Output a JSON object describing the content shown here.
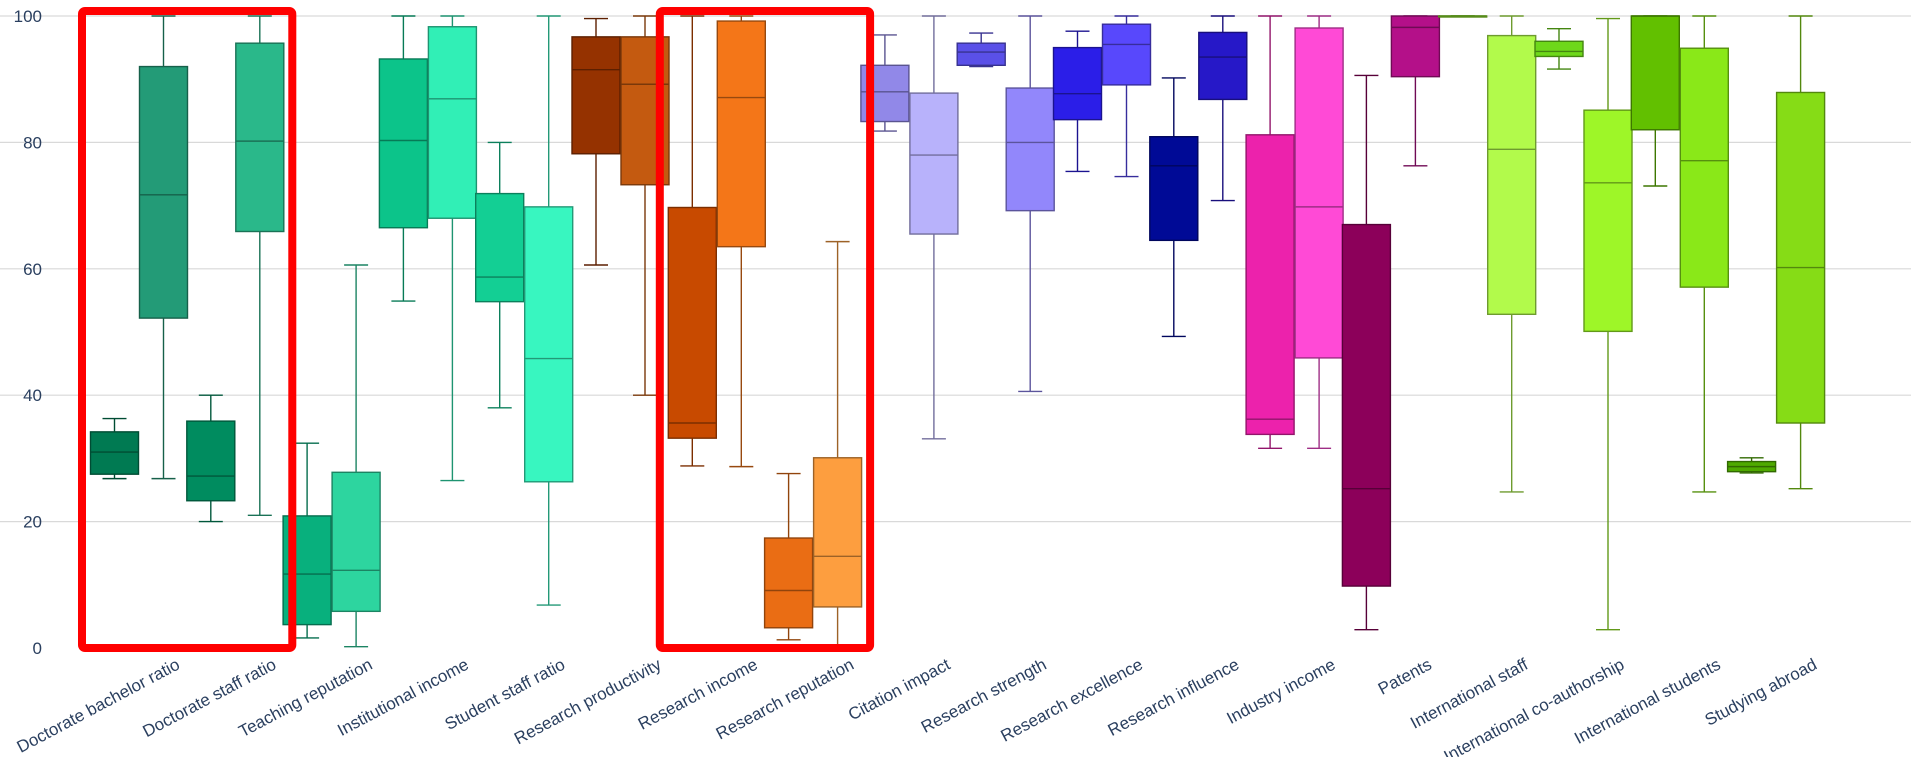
{
  "chart_data": {
    "type": "box",
    "ylim": [
      0,
      100
    ],
    "yticks": [
      0,
      20,
      40,
      60,
      80,
      100
    ],
    "grid": true,
    "categories": [
      "Doctorate bachelor ratio",
      "Doctorate staff ratio",
      "Teaching reputation",
      "Institutional income",
      "Student staff ratio",
      "Research productivity",
      "Research income",
      "Research reputation",
      "Citation impact",
      "Research strength",
      "Research excellence",
      "Research influence",
      "Industry income",
      "Patents",
      "International staff",
      "International co-authorship",
      "International students",
      "Studying abroad"
    ],
    "boxes": [
      {
        "category": "Doctorate bachelor ratio",
        "slot": 0,
        "color": "#007a52",
        "min": 26.8,
        "q1": 27.5,
        "median": 31,
        "q3": 34.2,
        "max": 36.3
      },
      {
        "category": "Doctorate bachelor ratio",
        "slot": 1,
        "color": "#239b77",
        "min": 26.8,
        "q1": 52.2,
        "median": 71.7,
        "q3": 92,
        "max": 100
      },
      {
        "category": "Doctorate staff ratio",
        "slot": 0,
        "color": "#008c5f",
        "min": 20,
        "q1": 23.3,
        "median": 27.2,
        "q3": 35.9,
        "max": 40
      },
      {
        "category": "Doctorate staff ratio",
        "slot": 1,
        "color": "#2ab88a",
        "min": 21,
        "q1": 65.9,
        "median": 80.2,
        "q3": 95.7,
        "max": 100
      },
      {
        "category": "Teaching reputation",
        "slot": 0,
        "color": "#08b07d",
        "min": 1.6,
        "q1": 3.7,
        "median": 11.7,
        "q3": 20.9,
        "max": 32.4
      },
      {
        "category": "Teaching reputation",
        "slot": 1,
        "color": "#2dd59f",
        "min": 0.2,
        "q1": 5.8,
        "median": 12.3,
        "q3": 27.8,
        "max": 60.6
      },
      {
        "category": "Institutional income",
        "slot": 0,
        "color": "#0cc48a",
        "min": 54.9,
        "q1": 66.5,
        "median": 80.3,
        "q3": 93.2,
        "max": 100
      },
      {
        "category": "Institutional income",
        "slot": 1,
        "color": "#31efb6",
        "min": 26.5,
        "q1": 68,
        "median": 86.9,
        "q3": 98.3,
        "max": 100
      },
      {
        "category": "Student staff ratio",
        "slot": 0,
        "color": "#13cf94",
        "min": 38,
        "q1": 54.8,
        "median": 58.7,
        "q3": 71.9,
        "max": 80
      },
      {
        "category": "Student staff ratio",
        "slot": 1,
        "color": "#38f6c0",
        "min": 6.8,
        "q1": 26.3,
        "median": 45.8,
        "q3": 69.8,
        "max": 100
      },
      {
        "category": "Research productivity",
        "slot": 0,
        "color": "#953200",
        "min": 60.6,
        "q1": 78.2,
        "median": 91.5,
        "q3": 96.7,
        "max": 99.6
      },
      {
        "category": "Research productivity",
        "slot": 1,
        "color": "#c45a10",
        "min": 40,
        "q1": 73.3,
        "median": 89.2,
        "q3": 96.7,
        "max": 100
      },
      {
        "category": "Research income",
        "slot": 0,
        "color": "#c84a00",
        "min": 28.8,
        "q1": 33.2,
        "median": 35.6,
        "q3": 69.7,
        "max": 100
      },
      {
        "category": "Research income",
        "slot": 1,
        "color": "#f47618",
        "min": 28.7,
        "q1": 63.5,
        "median": 87.1,
        "q3": 99.2,
        "max": 100
      },
      {
        "category": "Research reputation",
        "slot": 0,
        "color": "#ea6d14",
        "min": 1.3,
        "q1": 3.2,
        "median": 9.1,
        "q3": 17.4,
        "max": 27.6
      },
      {
        "category": "Research reputation",
        "slot": 1,
        "color": "#fd9e3f",
        "min": 0.2,
        "q1": 6.5,
        "median": 14.5,
        "q3": 30.1,
        "max": 64.3
      },
      {
        "category": "Citation impact",
        "slot": 0,
        "color": "#9188e8",
        "min": 81.8,
        "q1": 83.3,
        "median": 88,
        "q3": 92.2,
        "max": 97
      },
      {
        "category": "Citation impact",
        "slot": 1,
        "color": "#b8b2fb",
        "min": 33.1,
        "q1": 65.5,
        "median": 78,
        "q3": 87.8,
        "max": 100
      },
      {
        "category": "Research strength",
        "slot": 0,
        "color": "#5a50e8",
        "min": 92,
        "q1": 92.2,
        "median": 94.3,
        "q3": 95.7,
        "max": 97.3
      },
      {
        "category": "Research strength",
        "slot": 1,
        "color": "#9287fb",
        "min": 40.6,
        "q1": 69.2,
        "median": 80,
        "q3": 88.6,
        "max": 100
      },
      {
        "category": "Research excellence",
        "slot": 0,
        "color": "#2b1ee8",
        "min": 75.4,
        "q1": 83.6,
        "median": 87.7,
        "q3": 95,
        "max": 97.6
      },
      {
        "category": "Research excellence",
        "slot": 1,
        "color": "#5848fc",
        "min": 74.6,
        "q1": 89.1,
        "median": 95.5,
        "q3": 98.7,
        "max": 100
      },
      {
        "category": "Research influence",
        "slot": 0,
        "color": "#000a96",
        "min": 49.3,
        "q1": 64.5,
        "median": 76.3,
        "q3": 80.9,
        "max": 90.2
      },
      {
        "category": "Research influence",
        "slot": 1,
        "color": "#2618c8",
        "min": 70.8,
        "q1": 86.8,
        "median": 93.5,
        "q3": 97.4,
        "max": 100
      },
      {
        "category": "Industry income",
        "slot": 0,
        "color": "#ec22ac",
        "min": 31.6,
        "q1": 33.8,
        "median": 36.2,
        "q3": 81.2,
        "max": 100
      },
      {
        "category": "Industry income",
        "slot": 1,
        "color": "#ff4ad6",
        "min": 31.6,
        "q1": 45.9,
        "median": 69.8,
        "q3": 98.1,
        "max": 100
      },
      {
        "category": "Patents",
        "slot": 0,
        "color": "#8c005a",
        "min": 2.9,
        "q1": 9.8,
        "median": 25.2,
        "q3": 67,
        "max": 90.6
      },
      {
        "category": "Patents",
        "slot": 1,
        "color": "#b41089",
        "min": 76.3,
        "q1": 90.4,
        "median": 98.2,
        "q3": 100,
        "max": 100
      },
      {
        "category": "International staff",
        "slot": 0,
        "color": "#8ce02a",
        "min": 100,
        "q1": 100,
        "median": 100,
        "q3": 100,
        "max": 100
      },
      {
        "category": "International staff",
        "slot": 1,
        "color": "#b2fa4b",
        "min": 24.7,
        "q1": 52.8,
        "median": 78.9,
        "q3": 96.9,
        "max": 100
      },
      {
        "category": "International co-authorship",
        "slot": 0,
        "color": "#6ed81a",
        "min": 91.6,
        "q1": 93.6,
        "median": 94.4,
        "q3": 96,
        "max": 98
      },
      {
        "category": "International co-authorship",
        "slot": 1,
        "color": "#9ef628",
        "min": 2.9,
        "q1": 50.1,
        "median": 73.6,
        "q3": 85.1,
        "max": 99.6
      },
      {
        "category": "International students",
        "slot": 0,
        "color": "#62c000",
        "min": 73.1,
        "q1": 82,
        "median": 100,
        "q3": 100,
        "max": 100
      },
      {
        "category": "International students",
        "slot": 1,
        "color": "#8ae818",
        "min": 24.7,
        "q1": 57.1,
        "median": 77.1,
        "q3": 94.9,
        "max": 100
      },
      {
        "category": "Studying abroad",
        "slot": 0,
        "color": "#4faa00",
        "min": 27.7,
        "q1": 27.9,
        "median": 28.7,
        "q3": 29.5,
        "max": 30.1
      },
      {
        "category": "Studying abroad",
        "slot": 1,
        "color": "#86dc16",
        "min": 25.2,
        "q1": 35.6,
        "median": 60.2,
        "q3": 87.9,
        "max": 100
      }
    ],
    "highlights": [
      {
        "categories": [
          "Doctorate bachelor ratio",
          "Doctorate staff ratio"
        ],
        "color": "#ff0000"
      },
      {
        "categories": [
          "Research income",
          "Research reputation"
        ],
        "color": "#ff0000"
      }
    ]
  }
}
